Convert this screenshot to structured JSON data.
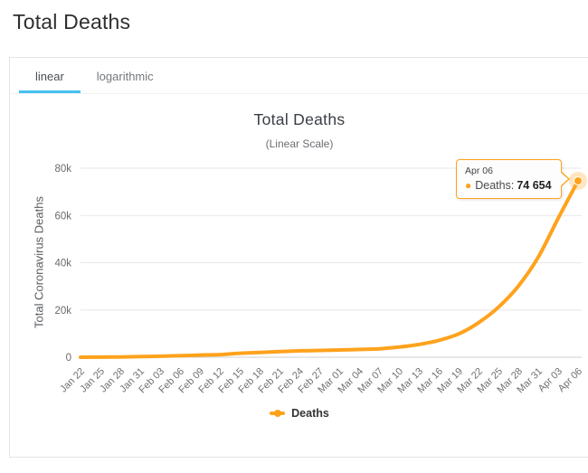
{
  "page": {
    "title": "Total Deaths"
  },
  "tabs": [
    {
      "label": "linear",
      "active": true
    },
    {
      "label": "logarithmic",
      "active": false
    }
  ],
  "colors": {
    "series_orange": "#ffa21c",
    "tab_active_underline": "#45c1f0",
    "gridline": "#e7e7e7",
    "axis_line": "#cfcfcf",
    "axis_label": "#707070"
  },
  "chart_data": {
    "type": "line",
    "title": "Total Deaths",
    "subtitle": "(Linear Scale)",
    "xlabel": "",
    "ylabel": "Total Coronavirus Deaths",
    "ylim": [
      0,
      80000
    ],
    "ytick_values": [
      0,
      20000,
      40000,
      60000,
      80000
    ],
    "ytick_labels": [
      "0",
      "20k",
      "40k",
      "60k",
      "80k"
    ],
    "grid": true,
    "legend_position": "bottom",
    "categories": [
      "Jan 22",
      "Jan 25",
      "Jan 28",
      "Jan 31",
      "Feb 03",
      "Feb 06",
      "Feb 09",
      "Feb 12",
      "Feb 15",
      "Feb 18",
      "Feb 21",
      "Feb 24",
      "Feb 27",
      "Mar 01",
      "Mar 04",
      "Mar 07",
      "Mar 10",
      "Mar 13",
      "Mar 16",
      "Mar 19",
      "Mar 22",
      "Mar 25",
      "Mar 28",
      "Mar 31",
      "Apr 03",
      "Apr 06"
    ],
    "series": [
      {
        "name": "Deaths",
        "color": "#ffa21c",
        "values": [
          17,
          56,
          132,
          259,
          427,
          638,
          906,
          1118,
          1669,
          2010,
          2360,
          2701,
          2858,
          3050,
          3286,
          3559,
          4292,
          5404,
          7126,
          9867,
          14611,
          21181,
          30105,
          42341,
          58787,
          74654
        ]
      }
    ],
    "tooltip": {
      "header": "Apr 06",
      "bullet": "●",
      "label": "Deaths:",
      "value": "74 654"
    }
  }
}
